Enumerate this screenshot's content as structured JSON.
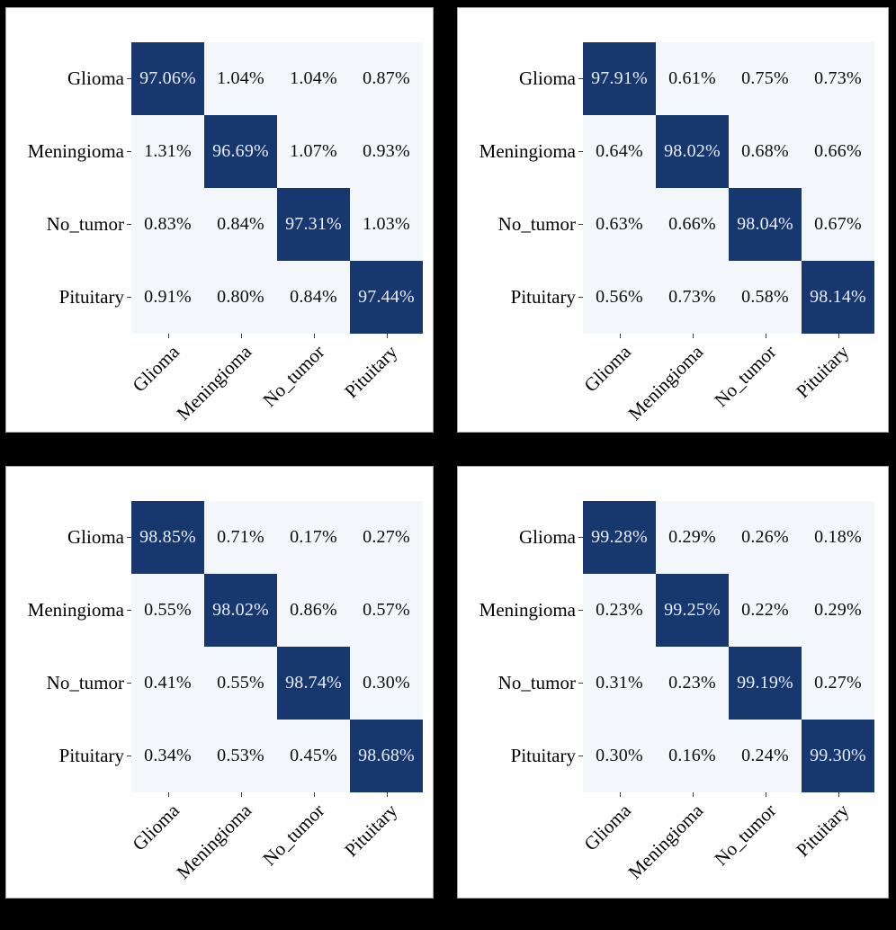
{
  "figure": {
    "background": "#000000",
    "panel_background": "#ffffff",
    "diagonal_cell_color": "#17386e",
    "off_diagonal_cell_color": "#f3f6fb",
    "diagonal_text_color": "#e9edf6",
    "off_diagonal_text_color": "#0b0b0b",
    "tick_color": "#3a3a3a"
  },
  "chart_data": [
    {
      "type": "heatmap",
      "position": "top-left",
      "x_categories": [
        "Glioma",
        "Meningioma",
        "No_tumor",
        "Pituitary"
      ],
      "y_categories": [
        "Glioma",
        "Meningioma",
        "No_tumor",
        "Pituitary"
      ],
      "values": [
        [
          97.06,
          1.04,
          1.04,
          0.87
        ],
        [
          1.31,
          96.69,
          1.07,
          0.93
        ],
        [
          0.83,
          0.84,
          97.31,
          1.03
        ],
        [
          0.91,
          0.8,
          0.84,
          97.44
        ]
      ],
      "cell_labels": [
        [
          "97.06%",
          "1.04%",
          "1.04%",
          "0.87%"
        ],
        [
          "1.31%",
          "96.69%",
          "1.07%",
          "0.93%"
        ],
        [
          "0.83%",
          "0.84%",
          "97.31%",
          "1.03%"
        ],
        [
          "0.91%",
          "0.80%",
          "0.84%",
          "97.44%"
        ]
      ]
    },
    {
      "type": "heatmap",
      "position": "top-right",
      "x_categories": [
        "Glioma",
        "Meningioma",
        "No_tumor",
        "Pituitary"
      ],
      "y_categories": [
        "Glioma",
        "Meningioma",
        "No_tumor",
        "Pituitary"
      ],
      "values": [
        [
          97.91,
          0.61,
          0.75,
          0.73
        ],
        [
          0.64,
          98.02,
          0.68,
          0.66
        ],
        [
          0.63,
          0.66,
          98.04,
          0.67
        ],
        [
          0.56,
          0.73,
          0.58,
          98.14
        ]
      ],
      "cell_labels": [
        [
          "97.91%",
          "0.61%",
          "0.75%",
          "0.73%"
        ],
        [
          "0.64%",
          "98.02%",
          "0.68%",
          "0.66%"
        ],
        [
          "0.63%",
          "0.66%",
          "98.04%",
          "0.67%"
        ],
        [
          "0.56%",
          "0.73%",
          "0.58%",
          "98.14%"
        ]
      ]
    },
    {
      "type": "heatmap",
      "position": "bottom-left",
      "x_categories": [
        "Glioma",
        "Meningioma",
        "No_tumor",
        "Pituitary"
      ],
      "y_categories": [
        "Glioma",
        "Meningioma",
        "No_tumor",
        "Pituitary"
      ],
      "values": [
        [
          98.85,
          0.71,
          0.17,
          0.27
        ],
        [
          0.55,
          98.02,
          0.86,
          0.57
        ],
        [
          0.41,
          0.55,
          98.74,
          0.3
        ],
        [
          0.34,
          0.53,
          0.45,
          98.68
        ]
      ],
      "cell_labels": [
        [
          "98.85%",
          "0.71%",
          "0.17%",
          "0.27%"
        ],
        [
          "0.55%",
          "98.02%",
          "0.86%",
          "0.57%"
        ],
        [
          "0.41%",
          "0.55%",
          "98.74%",
          "0.30%"
        ],
        [
          "0.34%",
          "0.53%",
          "0.45%",
          "98.68%"
        ]
      ]
    },
    {
      "type": "heatmap",
      "position": "bottom-right",
      "x_categories": [
        "Glioma",
        "Meningioma",
        "No_tumor",
        "Pituitary"
      ],
      "y_categories": [
        "Glioma",
        "Meningioma",
        "No_tumor",
        "Pituitary"
      ],
      "values": [
        [
          99.28,
          0.29,
          0.26,
          0.18
        ],
        [
          0.23,
          99.25,
          0.22,
          0.29
        ],
        [
          0.31,
          0.23,
          99.19,
          0.27
        ],
        [
          0.3,
          0.16,
          0.24,
          99.3
        ]
      ],
      "cell_labels": [
        [
          "99.28%",
          "0.29%",
          "0.26%",
          "0.18%"
        ],
        [
          "0.23%",
          "99.25%",
          "0.22%",
          "0.29%"
        ],
        [
          "0.31%",
          "0.23%",
          "99.19%",
          "0.27%"
        ],
        [
          "0.30%",
          "0.16%",
          "0.24%",
          "99.30%"
        ]
      ]
    }
  ]
}
